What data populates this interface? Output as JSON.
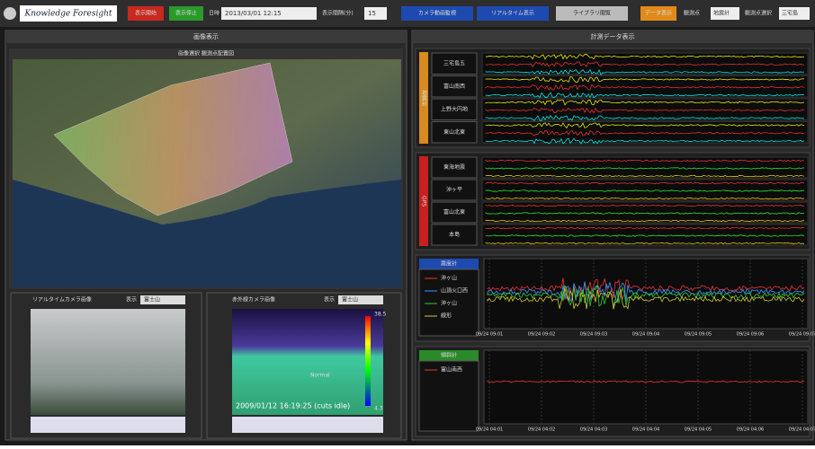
{
  "toolbar": {
    "logo": "Knowledge Foresight",
    "buttons": [
      "表示開始",
      "表示停止"
    ],
    "date_label": "日時",
    "date": "2013/03/01 12:15",
    "interval_label": "表示間隔(分)",
    "interval": "15",
    "nav": [
      "カメラ動画監視",
      "リアルタイム表示",
      "ライブラリ閲覧",
      "データ表示"
    ],
    "observation_label": "観測点",
    "observation": "地震計",
    "station_label": "観測点選択",
    "station": "三宅島"
  },
  "image_panel": {
    "title": "画像表示",
    "subtitle": "画像選択 観測点配置図",
    "realtime": {
      "title": "リアルタイムカメラ画像",
      "select_label": "表示",
      "select": "富士山"
    },
    "infrared": {
      "title": "赤外線カメラ画像",
      "select_label": "表示",
      "select": "富士山",
      "timestamp": "2009/01/12 16:19:25 (cuts idle)",
      "scale_max": "38.5",
      "scale_min": "4.3",
      "marker": "Normal"
    }
  },
  "data_panel": {
    "title": "計測データ表示",
    "seismometer": {
      "label": "地震計",
      "stations": [
        "三宅島五",
        "富山南西",
        "上野大円地",
        "東山北東"
      ]
    },
    "gps": {
      "label": "GPS",
      "stations": [
        "東海地震",
        "沖ヶ平",
        "富山北東",
        "本島"
      ]
    },
    "intensity": {
      "label": "震度計",
      "legend": [
        "沖ヶ山",
        "山頂火口西",
        "沖ヶ山",
        "線形"
      ],
      "times": [
        "09/24 09:01",
        "09/24 09:02",
        "09/24 09:03",
        "09/24 09:04",
        "09/24 09:05",
        "09/24 09:06",
        "09/24 09:07"
      ]
    },
    "tiltmeter": {
      "label": "傾斜計",
      "legend": [
        "富山南西"
      ],
      "times": [
        "09/24 04:01",
        "09/24 04:02",
        "09/24 04:03",
        "09/24 04:04",
        "09/24 04:05",
        "09/24 04:06",
        "09/24 04:07"
      ]
    }
  }
}
